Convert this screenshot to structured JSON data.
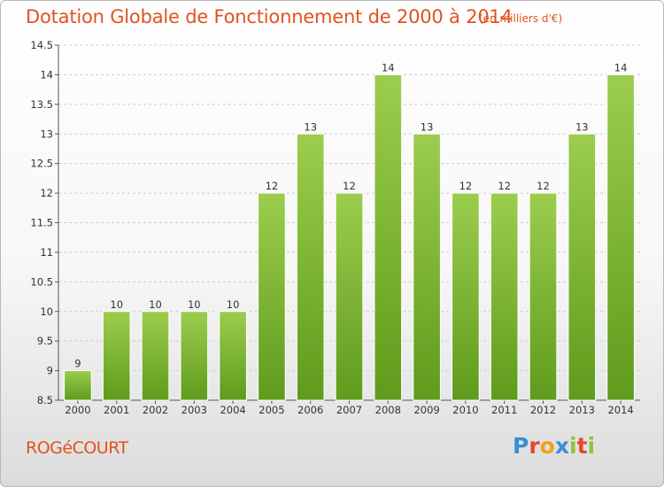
{
  "header": {
    "title": "Dotation Globale de Fonctionnement de 2000 à 2014",
    "subtitle": "(en milliers d'€)"
  },
  "footer": {
    "commune": "ROGéCOURT",
    "logo": {
      "letters": [
        "P",
        "r",
        "o",
        "x",
        "i",
        "t",
        "i"
      ]
    }
  },
  "colors": {
    "title": "#e1531e",
    "bar_top": "#9ccd4e",
    "bar_bottom": "#5f9b1c",
    "grid": "#cccccc"
  },
  "chart_data": {
    "type": "bar",
    "title": "Dotation Globale de Fonctionnement de 2000 à 2014",
    "subtitle": "(en milliers d'€)",
    "xlabel": "",
    "ylabel": "",
    "categories": [
      "2000",
      "2001",
      "2002",
      "2003",
      "2004",
      "2005",
      "2006",
      "2007",
      "2008",
      "2009",
      "2010",
      "2011",
      "2012",
      "2013",
      "2014"
    ],
    "values": [
      9,
      10,
      10,
      10,
      10,
      12,
      13,
      12,
      14,
      13,
      12,
      12,
      12,
      13,
      14
    ],
    "value_labels": [
      "9",
      "10",
      "10",
      "10",
      "10",
      "12",
      "13",
      "12",
      "14",
      "13",
      "12",
      "12",
      "12",
      "13",
      "14"
    ],
    "ylim": [
      8.5,
      14.5
    ],
    "yticks": [
      8.5,
      9,
      9.5,
      10,
      10.5,
      11,
      11.5,
      12,
      12.5,
      13,
      13.5,
      14,
      14.5
    ],
    "ytick_labels": [
      "8.5",
      "9",
      "9.5",
      "10",
      "10.5",
      "11",
      "11.5",
      "12",
      "12.5",
      "13",
      "13.5",
      "14",
      "14.5"
    ],
    "grid": true,
    "legend": "none"
  }
}
